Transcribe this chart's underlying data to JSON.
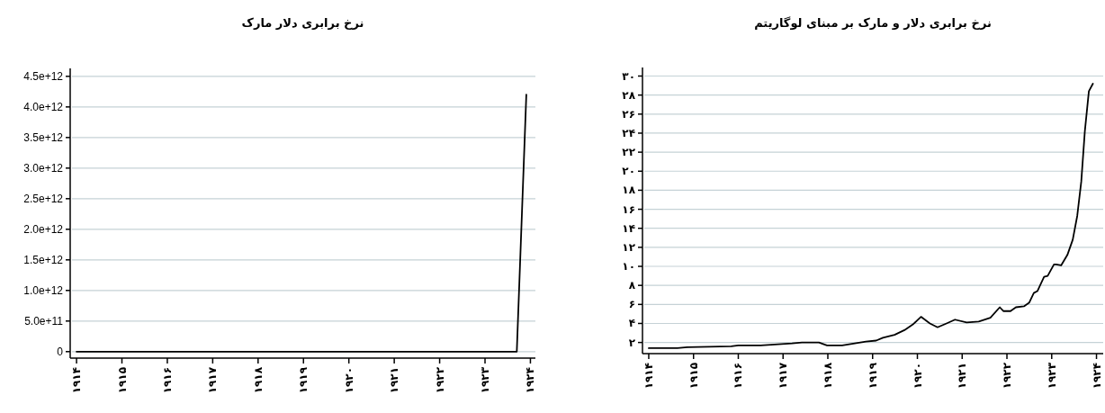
{
  "chart_data": [
    {
      "type": "line",
      "title": "نرخ برابری دلار مارک",
      "color": "#000000",
      "grid": "y",
      "x": [
        1914,
        1923.7,
        1923.91
      ],
      "values": [
        0,
        0,
        4200000000000
      ],
      "xlim": [
        1913.86,
        1924.11
      ],
      "ylim": [
        -106000000000,
        4630000000000
      ],
      "xticks": [
        {
          "value": 1914,
          "label": "۱۹۱۴"
        },
        {
          "value": 1915,
          "label": "۱۹۱۵"
        },
        {
          "value": 1916,
          "label": "۱۹۱۶"
        },
        {
          "value": 1917,
          "label": "۱۹۱۷"
        },
        {
          "value": 1918,
          "label": "۱۹۱۸"
        },
        {
          "value": 1919,
          "label": "۱۹۱۹"
        },
        {
          "value": 1920,
          "label": "۱۹۲۰"
        },
        {
          "value": 1921,
          "label": "۱۹۲۱"
        },
        {
          "value": 1922,
          "label": "۱۹۲۲"
        },
        {
          "value": 1923,
          "label": "۱۹۲۳"
        },
        {
          "value": 1924,
          "label": "۱۹۲۴"
        }
      ],
      "yticks": [
        0,
        {
          "value": 500000000000,
          "label": "5.0e+11"
        },
        {
          "value": 1000000000000,
          "label": "1.0e+12"
        },
        {
          "value": 1500000000000,
          "label": "1.5e+12"
        },
        {
          "value": 2000000000000,
          "label": "2.0e+12"
        },
        {
          "value": 2500000000000,
          "label": "2.5e+12"
        },
        {
          "value": 3000000000000,
          "label": "3.0e+12"
        },
        {
          "value": 3500000000000,
          "label": "3.5e+12"
        },
        {
          "value": 4000000000000,
          "label": "4.0e+12"
        },
        {
          "value": 4500000000000,
          "label": "4.5e+12"
        }
      ]
    },
    {
      "type": "line",
      "title": "نرخ برابری دلار و مارک بر مبنای لوگاریتم",
      "color": "#000000",
      "grid": "y",
      "x": [
        1914,
        1914.64,
        1914.86,
        1915.84,
        1916.0,
        1916.5,
        1917.2,
        1917.42,
        1917.8,
        1917.98,
        1918.32,
        1918.85,
        1919.08,
        1919.23,
        1919.49,
        1919.71,
        1919.9,
        1920.08,
        1920.28,
        1920.45,
        1920.65,
        1920.84,
        1921.1,
        1921.37,
        1921.63,
        1921.84,
        1921.92,
        1922.08,
        1922.2,
        1922.38,
        1922.5,
        1922.6,
        1922.68,
        1922.83,
        1922.91,
        1923.05,
        1923.1,
        1923.21,
        1923.35,
        1923.47,
        1923.57,
        1923.66,
        1923.74,
        1923.83,
        1923.92
      ],
      "values": [
        1.4,
        1.4,
        1.5,
        1.6,
        1.7,
        1.7,
        1.9,
        2.0,
        2.0,
        1.7,
        1.7,
        2.1,
        2.2,
        2.5,
        2.8,
        3.3,
        3.9,
        4.7,
        4.0,
        3.6,
        4.0,
        4.4,
        4.1,
        4.2,
        4.6,
        5.7,
        5.3,
        5.3,
        5.7,
        5.8,
        6.2,
        7.2,
        7.4,
        8.9,
        9.0,
        10.2,
        10.2,
        10.1,
        11.2,
        12.8,
        15.3,
        18.9,
        24.2,
        28.4,
        29.2
      ],
      "xlim": [
        1913.86,
        1924.15
      ],
      "ylim": [
        0.83,
        30.9
      ],
      "xticks": [
        {
          "value": 1914,
          "label": "۱۹۱۴"
        },
        {
          "value": 1915,
          "label": "۱۹۱۵"
        },
        {
          "value": 1916,
          "label": "۱۹۱۶"
        },
        {
          "value": 1917,
          "label": "۱۹۱۷"
        },
        {
          "value": 1918,
          "label": "۱۹۱۸"
        },
        {
          "value": 1919,
          "label": "۱۹۱۹"
        },
        {
          "value": 1920,
          "label": "۱۹۲۰"
        },
        {
          "value": 1921,
          "label": "۱۹۲۱"
        },
        {
          "value": 1922,
          "label": "۱۹۲۲"
        },
        {
          "value": 1923,
          "label": "۱۹۲۳"
        },
        {
          "value": 1924,
          "label": "۱۹۲۴"
        }
      ],
      "yticks": [
        {
          "value": 2,
          "label": "۲"
        },
        {
          "value": 4,
          "label": "۴"
        },
        {
          "value": 6,
          "label": "۶"
        },
        {
          "value": 8,
          "label": "۸"
        },
        {
          "value": 10,
          "label": "۱۰"
        },
        {
          "value": 12,
          "label": "۱۲"
        },
        {
          "value": 14,
          "label": "۱۴"
        },
        {
          "value": 16,
          "label": "۱۶"
        },
        {
          "value": 18,
          "label": "۱۸"
        },
        {
          "value": 20,
          "label": "۲۰"
        },
        {
          "value": 22,
          "label": "۲۲"
        },
        {
          "value": 24,
          "label": "۲۴"
        },
        {
          "value": 26,
          "label": "۲۶"
        },
        {
          "value": 28,
          "label": "۲۸"
        },
        {
          "value": 30,
          "label": "۳۰"
        }
      ]
    }
  ]
}
